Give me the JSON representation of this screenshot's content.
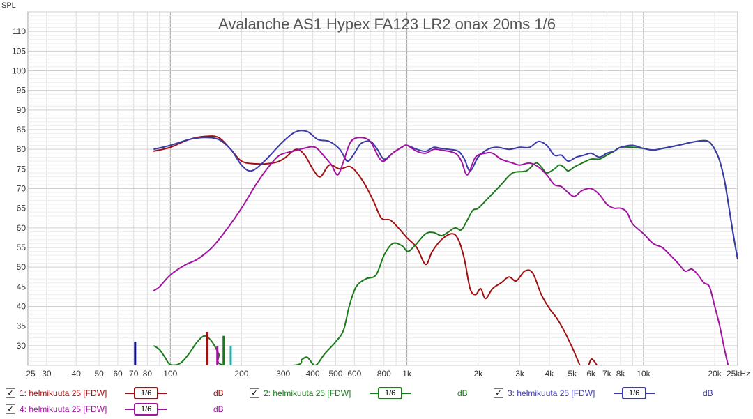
{
  "chart_data": {
    "type": "line",
    "title": "Avalanche AS1 Hypex FA123 LR2 onax 20ms 1/6",
    "ylabel": "SPL",
    "xlabel": "",
    "x_scale": "log",
    "xlim": [
      25,
      25000
    ],
    "ylim": [
      25,
      115
    ],
    "y_ticks": [
      30,
      35,
      40,
      45,
      50,
      55,
      60,
      65,
      70,
      75,
      80,
      85,
      90,
      95,
      100,
      105,
      110
    ],
    "x_ticks": [
      {
        "v": 25,
        "label": "25"
      },
      {
        "v": 30,
        "label": "30"
      },
      {
        "v": 40,
        "label": "40"
      },
      {
        "v": 50,
        "label": "50"
      },
      {
        "v": 60,
        "label": "60"
      },
      {
        "v": 70,
        "label": "70"
      },
      {
        "v": 80,
        "label": "80"
      },
      {
        "v": 100,
        "label": "100"
      },
      {
        "v": 200,
        "label": "200"
      },
      {
        "v": 300,
        "label": "300"
      },
      {
        "v": 400,
        "label": "400"
      },
      {
        "v": 500,
        "label": "500"
      },
      {
        "v": 600,
        "label": "600"
      },
      {
        "v": 800,
        "label": "800"
      },
      {
        "v": 1000,
        "label": "1k"
      },
      {
        "v": 2000,
        "label": "2k"
      },
      {
        "v": 3000,
        "label": "3k"
      },
      {
        "v": 4000,
        "label": "4k"
      },
      {
        "v": 5000,
        "label": "5k"
      },
      {
        "v": 6000,
        "label": "6k"
      },
      {
        "v": 7000,
        "label": "7k"
      },
      {
        "v": 8000,
        "label": "8k"
      },
      {
        "v": 10000,
        "label": "10k"
      },
      {
        "v": 20000,
        "label": "20k"
      },
      {
        "v": 25000,
        "label": "25kHz"
      }
    ],
    "grid": true,
    "series": [
      {
        "name": "1: helmikuuta 25 [FDW]",
        "color": "#a01010",
        "points": [
          [
            85,
            79.5
          ],
          [
            100,
            80.5
          ],
          [
            120,
            82.5
          ],
          [
            140,
            83.3
          ],
          [
            160,
            83
          ],
          [
            180,
            80
          ],
          [
            200,
            77
          ],
          [
            230,
            76.3
          ],
          [
            270,
            76.5
          ],
          [
            300,
            77.5
          ],
          [
            340,
            80
          ],
          [
            370,
            78.5
          ],
          [
            400,
            75
          ],
          [
            430,
            73
          ],
          [
            470,
            76
          ],
          [
            520,
            75
          ],
          [
            580,
            75.5
          ],
          [
            650,
            72
          ],
          [
            720,
            67
          ],
          [
            780,
            62.5
          ],
          [
            850,
            62
          ],
          [
            920,
            60
          ],
          [
            1000,
            57.5
          ],
          [
            1100,
            55
          ],
          [
            1200,
            50.7
          ],
          [
            1280,
            54
          ],
          [
            1400,
            57
          ],
          [
            1550,
            58.5
          ],
          [
            1650,
            57
          ],
          [
            1750,
            52
          ],
          [
            1850,
            44.5
          ],
          [
            1950,
            43
          ],
          [
            2050,
            44.5
          ],
          [
            2150,
            42
          ],
          [
            2300,
            44.5
          ],
          [
            2500,
            46
          ],
          [
            2700,
            47.5
          ],
          [
            2900,
            46.5
          ],
          [
            3150,
            49
          ],
          [
            3400,
            48.5
          ],
          [
            3700,
            43
          ],
          [
            4000,
            39.5
          ],
          [
            4300,
            37
          ],
          [
            4600,
            34
          ],
          [
            5000,
            29.5
          ],
          [
            5300,
            26
          ],
          [
            5500,
            24
          ],
          [
            5800,
            24.5
          ],
          [
            6000,
            26.5
          ],
          [
            6200,
            26
          ],
          [
            6500,
            24
          ]
        ]
      },
      {
        "name": "2: helmikuuta 25 [FDW]",
        "color": "#1a7a1a",
        "points": [
          [
            85,
            30
          ],
          [
            90,
            29
          ],
          [
            95,
            27
          ],
          [
            100,
            25.2
          ],
          [
            110,
            25.5
          ],
          [
            120,
            28
          ],
          [
            130,
            31
          ],
          [
            140,
            32.5
          ],
          [
            150,
            31
          ],
          [
            160,
            28
          ],
          [
            170,
            25
          ],
          [
            330,
            25
          ],
          [
            360,
            26.5
          ],
          [
            380,
            27
          ],
          [
            410,
            25
          ],
          [
            450,
            28
          ],
          [
            500,
            31
          ],
          [
            540,
            34
          ],
          [
            570,
            40
          ],
          [
            610,
            45
          ],
          [
            670,
            47
          ],
          [
            740,
            48
          ],
          [
            800,
            53
          ],
          [
            870,
            56
          ],
          [
            950,
            55.5
          ],
          [
            1010,
            54
          ],
          [
            1080,
            55.5
          ],
          [
            1200,
            58.5
          ],
          [
            1300,
            58.8
          ],
          [
            1400,
            58
          ],
          [
            1500,
            59
          ],
          [
            1600,
            60
          ],
          [
            1700,
            59.5
          ],
          [
            1800,
            62
          ],
          [
            1900,
            64.5
          ],
          [
            2000,
            65
          ],
          [
            2200,
            67.5
          ],
          [
            2500,
            71
          ],
          [
            2800,
            74
          ],
          [
            3200,
            74.5
          ],
          [
            3500,
            76.5
          ],
          [
            3700,
            75.5
          ],
          [
            3900,
            74
          ],
          [
            4200,
            75
          ],
          [
            4400,
            76
          ],
          [
            4600,
            75.5
          ],
          [
            4800,
            74.5
          ],
          [
            5100,
            75.5
          ],
          [
            5500,
            76.5
          ],
          [
            6000,
            77.5
          ],
          [
            6500,
            77.5
          ],
          [
            7000,
            78.5
          ],
          [
            7500,
            79.5
          ],
          [
            8000,
            80.5
          ],
          [
            9000,
            80.5
          ],
          [
            10000,
            80.2
          ],
          [
            11000,
            79.8
          ],
          [
            12000,
            80.2
          ],
          [
            14000,
            81
          ],
          [
            16000,
            81.8
          ],
          [
            18000,
            82.2
          ],
          [
            19000,
            81.8
          ],
          [
            20000,
            80
          ],
          [
            21000,
            77
          ],
          [
            22000,
            72
          ],
          [
            23000,
            65
          ],
          [
            24000,
            58
          ],
          [
            25000,
            52
          ]
        ]
      },
      {
        "name": "3: helmikuuta 25 [FDW]",
        "color": "#3a3aa8",
        "points": [
          [
            85,
            80
          ],
          [
            100,
            81
          ],
          [
            120,
            82.5
          ],
          [
            140,
            83
          ],
          [
            160,
            82.5
          ],
          [
            180,
            80
          ],
          [
            200,
            76
          ],
          [
            220,
            74.5
          ],
          [
            250,
            77
          ],
          [
            300,
            82
          ],
          [
            340,
            84.5
          ],
          [
            380,
            84.5
          ],
          [
            420,
            82.5
          ],
          [
            470,
            82
          ],
          [
            520,
            80
          ],
          [
            560,
            77
          ],
          [
            600,
            79
          ],
          [
            640,
            81.5
          ],
          [
            700,
            82
          ],
          [
            750,
            80
          ],
          [
            800,
            77.5
          ],
          [
            870,
            79
          ],
          [
            950,
            80.5
          ],
          [
            1000,
            81
          ],
          [
            1100,
            80
          ],
          [
            1200,
            79.5
          ],
          [
            1300,
            80.5
          ],
          [
            1400,
            80.2
          ],
          [
            1500,
            80
          ],
          [
            1650,
            79.5
          ],
          [
            1750,
            77.5
          ],
          [
            1850,
            74.5
          ],
          [
            2000,
            78
          ],
          [
            2200,
            80
          ],
          [
            2400,
            80.5
          ],
          [
            2700,
            80
          ],
          [
            3000,
            80.5
          ],
          [
            3300,
            80.5
          ],
          [
            3600,
            82
          ],
          [
            3900,
            81
          ],
          [
            4200,
            78.5
          ],
          [
            4500,
            78.5
          ],
          [
            4800,
            77
          ],
          [
            5200,
            78
          ],
          [
            5600,
            78.5
          ],
          [
            6000,
            79
          ],
          [
            6500,
            78
          ],
          [
            7000,
            79
          ],
          [
            7500,
            79.5
          ],
          [
            8000,
            80.5
          ],
          [
            9000,
            81
          ],
          [
            10000,
            80.2
          ],
          [
            11000,
            79.8
          ],
          [
            12000,
            80.2
          ],
          [
            14000,
            81
          ],
          [
            16000,
            81.8
          ],
          [
            18000,
            82.2
          ],
          [
            19000,
            81.8
          ],
          [
            20000,
            80
          ],
          [
            21000,
            77
          ],
          [
            22000,
            72
          ],
          [
            23000,
            65
          ],
          [
            24000,
            58
          ],
          [
            25000,
            52
          ]
        ]
      },
      {
        "name": "4: helmikuuta 25 [FDW]",
        "color": "#a014a0",
        "points": [
          [
            85,
            44
          ],
          [
            90,
            45
          ],
          [
            100,
            48
          ],
          [
            115,
            50.5
          ],
          [
            130,
            52
          ],
          [
            150,
            55
          ],
          [
            175,
            60
          ],
          [
            200,
            65
          ],
          [
            230,
            71
          ],
          [
            260,
            75.5
          ],
          [
            290,
            78.5
          ],
          [
            330,
            79.5
          ],
          [
            370,
            80.3
          ],
          [
            410,
            80.5
          ],
          [
            450,
            78
          ],
          [
            480,
            76
          ],
          [
            510,
            73.5
          ],
          [
            540,
            77
          ],
          [
            580,
            82
          ],
          [
            640,
            83
          ],
          [
            700,
            82
          ],
          [
            760,
            78
          ],
          [
            800,
            77
          ],
          [
            870,
            79
          ],
          [
            950,
            80.5
          ],
          [
            1000,
            81
          ],
          [
            1100,
            79.5
          ],
          [
            1200,
            79
          ],
          [
            1300,
            80
          ],
          [
            1400,
            79.8
          ],
          [
            1600,
            79
          ],
          [
            1700,
            77
          ],
          [
            1800,
            73.5
          ],
          [
            1950,
            78
          ],
          [
            2150,
            79
          ],
          [
            2300,
            79
          ],
          [
            2500,
            77.5
          ],
          [
            2800,
            76.5
          ],
          [
            3000,
            76
          ],
          [
            3300,
            76.5
          ],
          [
            3600,
            75.5
          ],
          [
            3900,
            73.5
          ],
          [
            4200,
            71
          ],
          [
            4500,
            70.5
          ],
          [
            4800,
            69
          ],
          [
            5100,
            68
          ],
          [
            5500,
            69.5
          ],
          [
            6000,
            70
          ],
          [
            6500,
            68.5
          ],
          [
            7000,
            66
          ],
          [
            7500,
            65
          ],
          [
            8000,
            65
          ],
          [
            8500,
            64
          ],
          [
            9000,
            61
          ],
          [
            10000,
            58.5
          ],
          [
            11000,
            56
          ],
          [
            12000,
            55
          ],
          [
            13000,
            53
          ],
          [
            14000,
            51
          ],
          [
            15000,
            49
          ],
          [
            16000,
            49.5
          ],
          [
            17000,
            48
          ],
          [
            18000,
            46
          ],
          [
            19000,
            45
          ],
          [
            20000,
            40
          ],
          [
            21000,
            35
          ],
          [
            22000,
            29
          ],
          [
            23000,
            24
          ]
        ]
      }
    ],
    "markers": [
      {
        "x": 71,
        "y": 31,
        "color": "#101080"
      },
      {
        "x": 143,
        "y": 33.5,
        "color": "#101080"
      },
      {
        "x": 143.5,
        "y": 33.5,
        "color": "#a01010"
      },
      {
        "x": 158,
        "y": 29.8,
        "color": "#a014a0"
      },
      {
        "x": 168,
        "y": 32.5,
        "color": "#1a7a1a"
      },
      {
        "x": 180,
        "y": 30,
        "color": "#20b0b0"
      }
    ]
  },
  "legend": {
    "items": [
      {
        "label": "1: helmikuuta 25 [FDW]",
        "color": "#a01010",
        "smoothing": "1/6",
        "unit": "dB"
      },
      {
        "label": "2: helmikuuta 25 [FDW]",
        "color": "#1a7a1a",
        "smoothing": "1/6",
        "unit": "dB"
      },
      {
        "label": "3: helmikuuta 25 [FDW]",
        "color": "#3a3aa8",
        "smoothing": "1/6",
        "unit": "dB"
      },
      {
        "label": "4: helmikuuta 25 [FDW]",
        "color": "#a014a0",
        "smoothing": "1/6",
        "unit": "dB"
      }
    ]
  }
}
